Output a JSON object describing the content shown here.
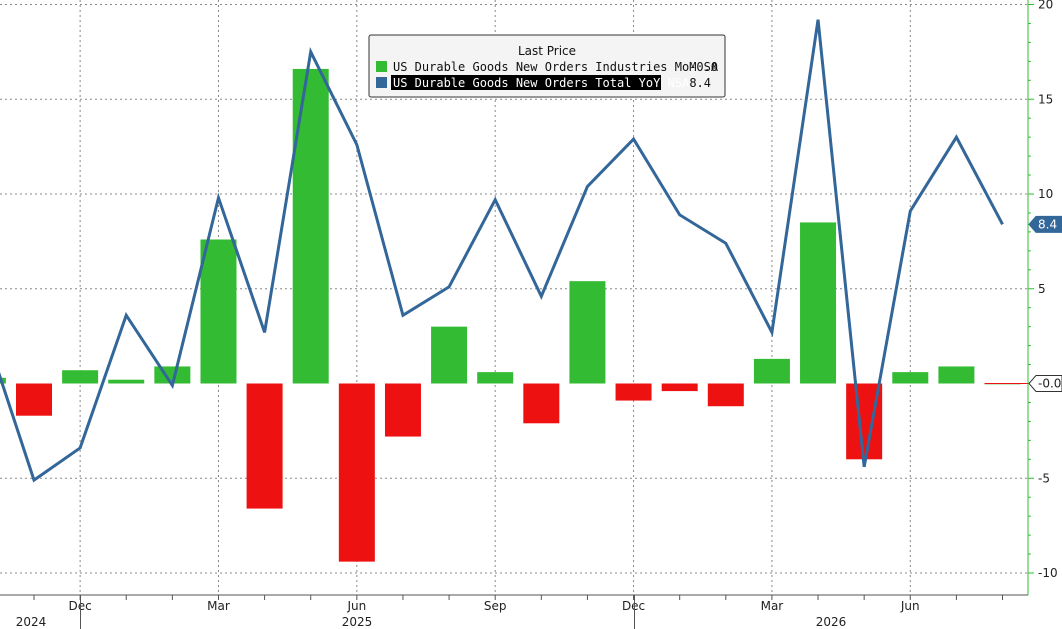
{
  "chart_data": {
    "type": "bar+line",
    "legend": {
      "title": "Last Price",
      "entries": [
        {
          "label": "US Durable Goods New Orders Industries MoM SA",
          "last": "-0.0",
          "color": "#33bb33"
        },
        {
          "label": "US Durable Goods New Orders Total YoY NSA",
          "last": "8.4",
          "color": "#336699"
        }
      ]
    },
    "months": [
      "2024-10",
      "2024-11",
      "2024-12",
      "2025-01",
      "2025-02",
      "2025-03",
      "2025-04",
      "2025-05",
      "2025-06",
      "2025-07",
      "2025-08",
      "2025-09",
      "2025-10",
      "2025-11",
      "2025-12",
      "2026-01",
      "2026-02",
      "2026-03",
      "2026-04",
      "2026-05",
      "2026-06",
      "2026-07",
      "2026-08"
    ],
    "series": [
      {
        "name": "US Durable Goods New Orders Industries MoM SA",
        "type": "bar",
        "positive_color": "#33bb33",
        "negative_color": "#ee1111",
        "values": [
          0.3,
          -1.7,
          0.7,
          0.2,
          0.9,
          7.6,
          -6.6,
          16.6,
          -9.4,
          -2.8,
          3.0,
          0.6,
          -2.1,
          5.4,
          -0.9,
          -0.4,
          -1.2,
          1.3,
          8.5,
          -4.0,
          0.6,
          0.9,
          -0.0
        ]
      },
      {
        "name": "US Durable Goods New Orders Total YoY NSA",
        "type": "line",
        "color": "#336699",
        "values": [
          2.3,
          -5.1,
          -3.4,
          3.6,
          -0.1,
          9.8,
          2.7,
          17.5,
          12.6,
          3.6,
          5.1,
          9.7,
          4.6,
          10.4,
          12.9,
          8.9,
          7.4,
          2.7,
          19.2,
          -4.4,
          9.1,
          13.0,
          8.4
        ]
      }
    ],
    "y_axis": {
      "min": -11,
      "max": 20,
      "ticks": [
        "20",
        "15",
        "10",
        "5",
        "-0.0",
        "-5",
        "-10"
      ],
      "side": "right"
    },
    "x_axis": {
      "tick_labels": [
        {
          "month": "2024-12",
          "label": "Dec"
        },
        {
          "month": "2025-03",
          "label": "Mar"
        },
        {
          "month": "2025-06",
          "label": "Jun"
        },
        {
          "month": "2025-09",
          "label": "Sep"
        },
        {
          "month": "2025-12",
          "label": "Dec"
        },
        {
          "month": "2026-03",
          "label": "Mar"
        },
        {
          "month": "2026-06",
          "label": "Jun"
        }
      ],
      "year_labels": [
        {
          "month": "2024-10",
          "label": "2024"
        },
        {
          "month": "2025-06",
          "label": "2025"
        },
        {
          "month": "2026-04",
          "label": "2026"
        }
      ]
    },
    "last_value_tags": [
      {
        "value": 8.4,
        "label": "8.4",
        "color": "#336699"
      },
      {
        "value": 0.0,
        "label": "-0.0",
        "color": "#33bb33"
      }
    ],
    "grid": true
  }
}
